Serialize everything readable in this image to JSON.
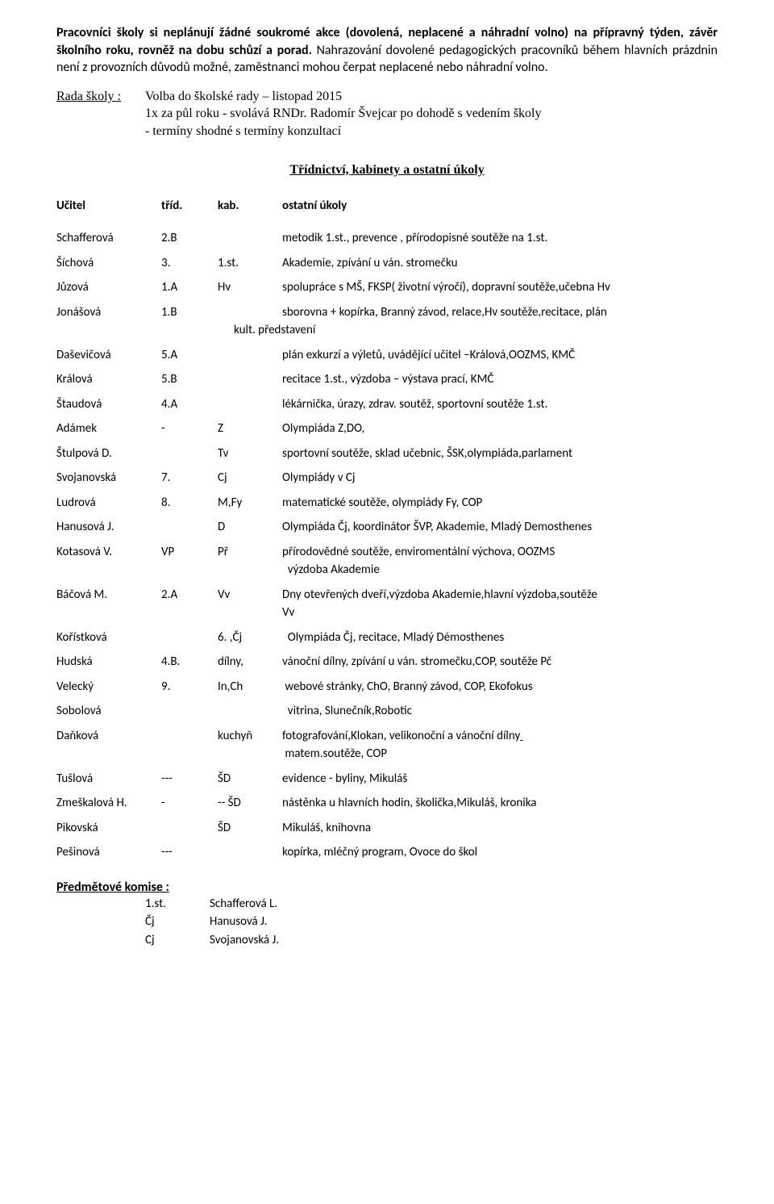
{
  "intro": {
    "para1_bold": "Pracovníci školy si neplánují žádné soukromé akce (dovolená, neplacené a náhradní volno) na přípravný týden, závěr školního roku, rovněž na dobu schůzí a porad.",
    "para2_plain": " Nahrazování dovolené pedagogických pracovníků během hlavních prázdnin není z provozních důvodů možné, zaměstnanci mohou čerpat neplacené nebo náhradní volno."
  },
  "rada": {
    "label": "Rada školy :",
    "l1": "Volba do školské rady – listopad 2015",
    "l2": "1x za půl roku - svolává RNDr. Radomír Švejcar po dohodě s vedením školy",
    "l3": "- termíny shodné s termíny konzultací"
  },
  "section_title": "Třídnictví, kabinety a ostatní úkoly",
  "headers": {
    "c1": "Učitel",
    "c2": "tříd.",
    "c3": "kab.",
    "c4": "ostatní úkoly"
  },
  "r": {
    "schafferova_n": "Schafferová",
    "schafferova_t": "2.B",
    "schafferova_k": "",
    "schafferova_o": "metodik 1.st., prevence , přírodopisné soutěže na 1.st.",
    "sichova_n": "Šíchová",
    "sichova_t": "3.",
    "sichova_k": "1.st.",
    "sichova_o": "Akademie, zpívání u ván. stromečku",
    "juzova_n": "Jůzová",
    "juzova_t": "1.A",
    "juzova_k": "Hv",
    "juzova_o": "spolupráce s MŠ, FKSP( životní výročí), dopravní soutěže,učebna Hv",
    "jonasova_n": "Jonášová",
    "jonasova_t": "1.B",
    "jonasova_k": "",
    "jonasova_o1": "sborovna + kopírka,  Branný závod, relace,Hv soutěže,recitace, plán",
    "jonasova_o2": "kult. představení",
    "dasev_n": "Daševičová",
    "dasev_t": "5.A",
    "dasev_k": "",
    "dasev_o": "plán exkurzí a výletů,   uvádějící učitel –Králová,OOZMS, KMČ",
    "kralova_n": "Králová",
    "kralova_t": "5.B",
    "kralova_k": "",
    "kralova_o": "recitace  1.st., výzdoba – výstava prací, KMČ",
    "staud_n": "Štaudová",
    "staud_t": "4.A",
    "staud_k": "",
    "staud_o": "lékárnička, úrazy, zdrav. soutěž, sportovní soutěže 1.st.",
    "adamek_n": "Adámek",
    "adamek_t": "-",
    "adamek_k": "Z",
    "adamek_o": "Olympiáda  Z,DO,",
    "stulp_n": "Štulpová D.",
    "stulp_t": "",
    "stulp_k": "Tv",
    "stulp_o": "sportovní soutěže,  sklad učebnic, ŠSK,olympiáda,parlament",
    "svoj_n": "Svojanovská",
    "svoj_t": "7.",
    "svoj_k": "Cj",
    "svoj_o": "Olympiády v Cj",
    "ludr_n": "Ludrová",
    "ludr_t": "8.",
    "ludr_k": "M,Fy",
    "ludr_o": "matematické soutěže, olympiády Fy, COP",
    "hanus_n": "Hanusová J.",
    "hanus_t": "",
    "hanus_k": "D",
    "hanus_o": "Olympiáda Čj, koordinátor ŠVP, Akademie,  Mladý Demosthenes",
    "kotas_n": "Kotasová V.",
    "kotas_t": "VP",
    "kotas_k": "Př",
    "kotas_o1": "přírodovědné soutěže, enviromentální výchova, OOZMS",
    "kotas_o2": "výzdoba Akademie",
    "bac_n": "Báčová M.",
    "bac_t": "2.A",
    "bac_k": "Vv",
    "bac_o1": "Dny otevřených dveří,výzdoba Akademie,hlavní výzdoba,soutěže",
    "bac_o2": "Vv",
    "kor_n": "Kořístková",
    "kor_t": "",
    "kor_k": "6. ,Čj",
    "kor_o": "Olympiáda Čj, recitace,  Mladý Démosthenes",
    "hud_n": "Hudská",
    "hud_t": "4.B.",
    "hud_k": "dílny,",
    "hud_o": "vánoční dílny, zpívání u ván. stromečku,COP, soutěže Pč",
    "vel_n": "Velecký",
    "vel_t": "9.",
    "vel_k": "In,Ch",
    "vel_o": "webové stránky, ChO,  Branný závod, COP, Ekofokus",
    "sob_n": "Sobolová",
    "sob_t": "",
    "sob_k": "",
    "sob_o": "vitrina, Slunečník,Robotic",
    "dan_n": "Daňková",
    "dan_t": "",
    "dan_k": "kuchyň",
    "dan_o1": "fotografování,Klokan, velikonoční a vánoční dílny",
    "dan_o2": "matem.soutěže, COP",
    "tus_n": "Tušlová",
    "tus_t": "---",
    "tus_k": "ŠD",
    "tus_o": "evidence - byliny, Mikuláš",
    "zme_n": "Zmeškalová H.",
    "zme_t": "-",
    "zme_k": "-- ŠD",
    "zme_o": "nástěnka u hlavních hodin, školička,Mikuláš, kronika",
    "pik_n": "Pikovská",
    "pik_t": "",
    "pik_k": "ŠD",
    "pik_o": "Mikuláš, knihovna",
    "pes_n": "Pešinová",
    "pes_t": "---",
    "pes_k": "",
    "pes_o": "kopírka, mléčný program, Ovoce do škol"
  },
  "komise": {
    "title": "Předmětové komise :",
    "rows": [
      {
        "s": "1.st.",
        "p": "Schafferová L."
      },
      {
        "s": "Čj",
        "p": "Hanusová J."
      },
      {
        "s": "Cj",
        "p": "Svojanovská J."
      }
    ]
  }
}
